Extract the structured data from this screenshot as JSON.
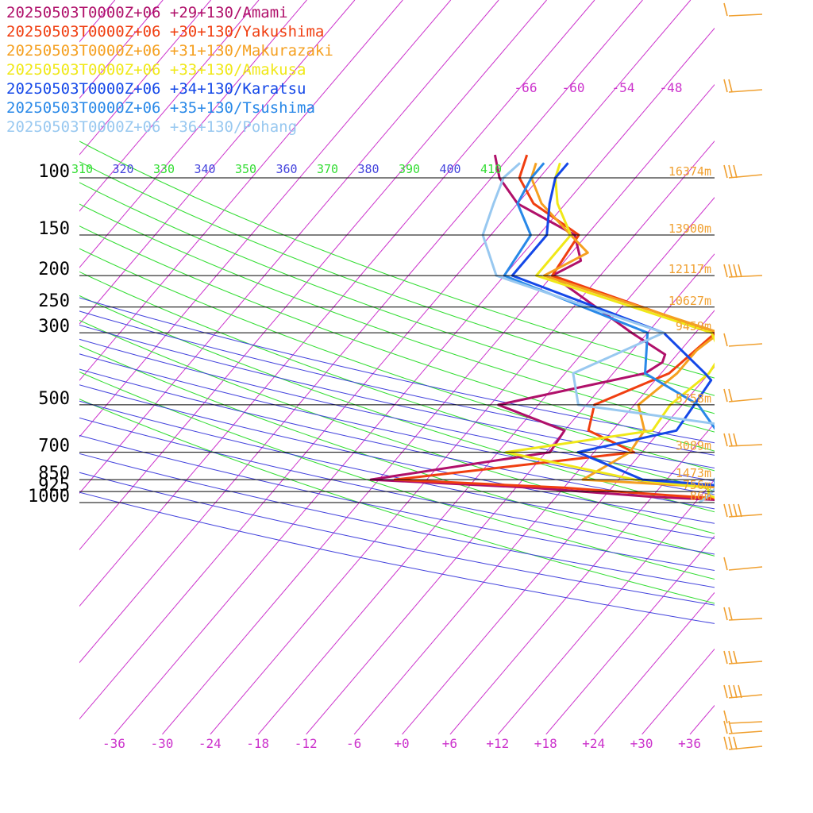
{
  "chart_data": {
    "type": "line",
    "title": "",
    "xlabel": "",
    "ylabel": "",
    "xlim": [
      -36,
      36
    ],
    "pressure_levels": [
      100,
      150,
      200,
      250,
      300,
      500,
      700,
      850,
      925,
      1000
    ],
    "pressure_labels": [
      "100",
      "150",
      "200",
      "250",
      "300",
      "500",
      "700",
      "850",
      "925",
      "1000"
    ],
    "x_ticks": [
      -36,
      -30,
      -24,
      -18,
      -12,
      -6,
      0,
      6,
      12,
      18,
      24,
      30,
      36
    ],
    "x_tick_labels": [
      "-36",
      "-30",
      "-24",
      "-18",
      "-12",
      "-6",
      "+0",
      "+6",
      "+12",
      "+18",
      "+24",
      "+30",
      "+36"
    ],
    "height_labels": [
      "16374m",
      "13900m",
      "12117m",
      "10627m",
      "9459m",
      "5758m",
      "3089m",
      "1473m",
      "756m",
      "86m"
    ],
    "theta_labels": [
      "310",
      "320",
      "330",
      "340",
      "350",
      "360",
      "370",
      "380",
      "390",
      "400",
      "410"
    ],
    "temp_top_labels": [
      "-66",
      "-60",
      "-54",
      "-48"
    ],
    "colors": {
      "isobar": "#000000",
      "isotherm": "#cc33cc",
      "dry_adiabat": "#33dd33",
      "isentrope": "#4444dd",
      "height_label": "#f0a030",
      "wind": "#f0a030"
    },
    "series": [
      {
        "name": "20250503T0000Z+06 +29+130/Amami",
        "color": "#b0106a",
        "points": [
          [
            1000,
            16.5
          ],
          [
            980,
            14
          ],
          [
            960,
            6
          ],
          [
            900,
            -10
          ],
          [
            850,
            -31
          ],
          [
            700,
            -11.5
          ],
          [
            600,
            -12
          ],
          [
            500,
            -23
          ],
          [
            400,
            -8
          ],
          [
            370,
            -7
          ],
          [
            350,
            -7.5
          ],
          [
            300,
            -14
          ],
          [
            200,
            -30
          ],
          [
            180,
            -28
          ],
          [
            150,
            -31.5
          ],
          [
            120,
            -42
          ],
          [
            100,
            -47
          ],
          [
            85,
            -50
          ]
        ]
      },
      {
        "name": "20250503T0000Z+06 +30+130/Yakushima",
        "color": "#f03e10",
        "points": [
          [
            1000,
            16
          ],
          [
            970,
            14
          ],
          [
            950,
            8
          ],
          [
            900,
            -6
          ],
          [
            850,
            -28
          ],
          [
            700,
            -1
          ],
          [
            600,
            -9
          ],
          [
            500,
            -11
          ],
          [
            400,
            -5
          ],
          [
            300,
            -3.5
          ],
          [
            200,
            -30
          ],
          [
            150,
            -31
          ],
          [
            120,
            -40
          ],
          [
            100,
            -44.5
          ],
          [
            85,
            -46
          ]
        ]
      },
      {
        "name": "20250503T0000Z+06 +31+130/Makurazaki",
        "color": "#f5a020",
        "points": [
          [
            1000,
            17
          ],
          [
            950,
            16
          ],
          [
            900,
            14
          ],
          [
            850,
            -4.5
          ],
          [
            700,
            -1.5
          ],
          [
            600,
            -2
          ],
          [
            500,
            -5.5
          ],
          [
            400,
            -4
          ],
          [
            340,
            -4
          ],
          [
            300,
            -3
          ],
          [
            200,
            -31
          ],
          [
            170,
            -28
          ],
          [
            150,
            -32
          ],
          [
            120,
            -39
          ],
          [
            100,
            -43
          ],
          [
            90,
            -44
          ]
        ]
      },
      {
        "name": "20250503T0000Z+06 +33+130/Amakusa",
        "color": "#f0e818",
        "points": [
          [
            1000,
            16
          ],
          [
            950,
            13
          ],
          [
            900,
            12
          ],
          [
            850,
            2
          ],
          [
            700,
            -17
          ],
          [
            600,
            -1
          ],
          [
            500,
            -1.5
          ],
          [
            400,
            0
          ],
          [
            350,
            -0.5
          ],
          [
            300,
            -4
          ],
          [
            200,
            -32
          ],
          [
            150,
            -32
          ],
          [
            120,
            -37
          ],
          [
            100,
            -40
          ],
          [
            90,
            -41
          ]
        ]
      },
      {
        "name": "20250503T0000Z+06 +34+130/Karatsu",
        "color": "#1448e8",
        "points": [
          [
            1000,
            19
          ],
          [
            950,
            19
          ],
          [
            900,
            17
          ],
          [
            850,
            3
          ],
          [
            700,
            -8
          ],
          [
            600,
            2
          ],
          [
            500,
            1.5
          ],
          [
            420,
            1
          ],
          [
            400,
            -0.5
          ],
          [
            300,
            -10
          ],
          [
            200,
            -35
          ],
          [
            150,
            -35
          ],
          [
            120,
            -38
          ],
          [
            100,
            -40
          ],
          [
            90,
            -40
          ]
        ]
      },
      {
        "name": "20250503T0000Z+06 +35+130/Tsushima",
        "color": "#2888e8",
        "points": [
          [
            1000,
            16
          ],
          [
            950,
            14
          ],
          [
            900,
            13
          ],
          [
            850,
            12
          ],
          [
            700,
            11
          ],
          [
            600,
            7
          ],
          [
            500,
            2
          ],
          [
            400,
            -8
          ],
          [
            300,
            -12
          ],
          [
            200,
            -36
          ],
          [
            150,
            -37
          ],
          [
            120,
            -42
          ],
          [
            100,
            -43
          ],
          [
            90,
            -43
          ]
        ]
      },
      {
        "name": "20250503T0000Z+06 +36+130/Pohang",
        "color": "#98c8f0",
        "points": [
          [
            1000,
            12.5
          ],
          [
            950,
            13
          ],
          [
            900,
            13
          ],
          [
            850,
            13
          ],
          [
            700,
            11
          ],
          [
            600,
            13
          ],
          [
            500,
            -13
          ],
          [
            400,
            -17
          ],
          [
            300,
            -10
          ],
          [
            200,
            -37
          ],
          [
            150,
            -43
          ],
          [
            120,
            -45
          ],
          [
            100,
            -46.5
          ],
          [
            90,
            -46
          ]
        ]
      }
    ],
    "legend_position": "top-left"
  }
}
